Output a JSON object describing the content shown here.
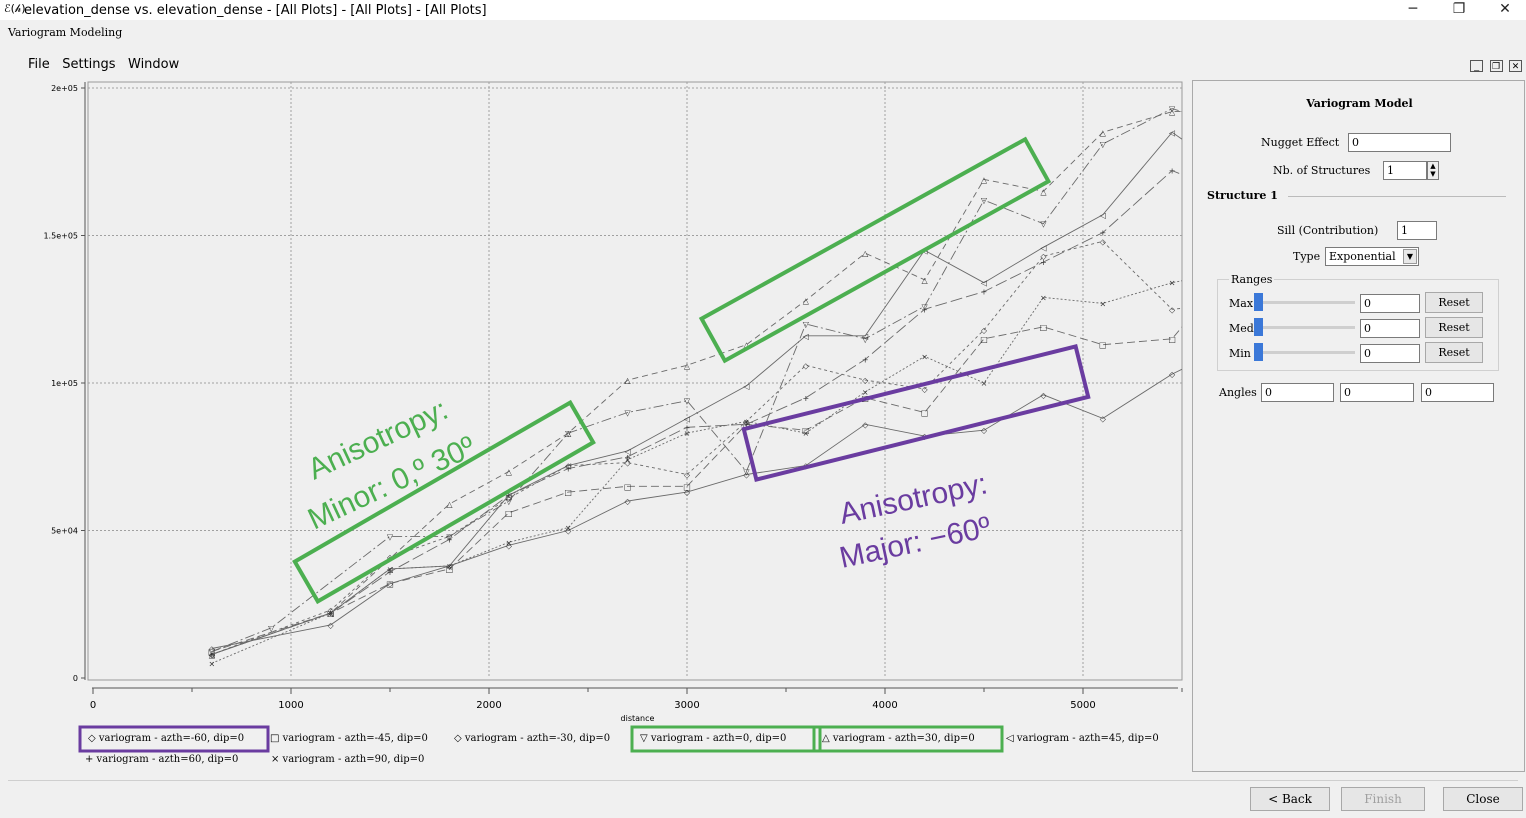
{
  "window": {
    "icon": "ℰ(𝒽)",
    "title": "elevation_dense vs. elevation_dense - [All Plots] - [All Plots] - [All Plots]",
    "minimize": "─",
    "maximize": "❐",
    "close": "✕"
  },
  "app": {
    "subtitle": "Variogram Modeling",
    "menu": [
      "File",
      "Settings",
      "Window"
    ],
    "panel_buttons": [
      "_",
      "❐",
      "✕"
    ]
  },
  "chart_data": {
    "type": "scatter",
    "xlabel": "distance",
    "ylabel": "",
    "xlim": [
      0,
      5500
    ],
    "ylim": [
      0,
      200000
    ],
    "x_ticks": [
      0,
      1000,
      2000,
      3000,
      4000,
      5000
    ],
    "x_tick_labels": [
      "0",
      "1000",
      "2000",
      "3000",
      "4000",
      "5000"
    ],
    "y_ticks": [
      0,
      50000,
      100000,
      150000,
      200000
    ],
    "y_tick_labels": [
      "0",
      "5e+04",
      "1e+05",
      "1.5e+05",
      "2e+05"
    ],
    "grid": true,
    "legend_position": "bottom",
    "series": [
      {
        "name": "variogram - azth=-60, dip=0",
        "marker": "◇",
        "dash": "",
        "points": [
          [
            600,
            10000
          ],
          [
            1200,
            18000
          ],
          [
            1500,
            32000
          ],
          [
            1800,
            38000
          ],
          [
            2100,
            45000
          ],
          [
            2400,
            50000
          ],
          [
            2700,
            60000
          ],
          [
            3000,
            63000
          ],
          [
            3300,
            69000
          ],
          [
            3600,
            72000
          ],
          [
            3900,
            86000
          ],
          [
            4200,
            82000
          ],
          [
            4500,
            84000
          ],
          [
            4800,
            96000
          ],
          [
            5100,
            88000
          ],
          [
            5450,
            103000
          ],
          [
            5600,
            108000
          ]
        ]
      },
      {
        "name": "variogram - azth=-45, dip=0",
        "marker": "□",
        "dash": "8,4",
        "points": [
          [
            600,
            9000
          ],
          [
            1200,
            22000
          ],
          [
            1500,
            32000
          ],
          [
            1800,
            37000
          ],
          [
            2100,
            56000
          ],
          [
            2400,
            63000
          ],
          [
            2700,
            65000
          ],
          [
            3000,
            65000
          ],
          [
            3300,
            86000
          ],
          [
            3600,
            84000
          ],
          [
            3900,
            95000
          ],
          [
            4200,
            90000
          ],
          [
            4500,
            115000
          ],
          [
            4800,
            119000
          ],
          [
            5100,
            113000
          ],
          [
            5450,
            115000
          ],
          [
            5600,
            127000
          ]
        ]
      },
      {
        "name": "variogram - azth=-30, dip=0",
        "marker": "◇",
        "dash": "3,3",
        "points": [
          [
            600,
            8000
          ],
          [
            1200,
            23000
          ],
          [
            1500,
            41000
          ],
          [
            1800,
            48000
          ],
          [
            2100,
            61000
          ],
          [
            2400,
            72000
          ],
          [
            2700,
            73000
          ],
          [
            3000,
            69000
          ],
          [
            3300,
            87000
          ],
          [
            3600,
            106000
          ],
          [
            3900,
            101000
          ],
          [
            4200,
            98000
          ],
          [
            4500,
            118000
          ],
          [
            4800,
            143000
          ],
          [
            5100,
            148000
          ],
          [
            5450,
            125000
          ],
          [
            5600,
            126000
          ]
        ]
      },
      {
        "name": "variogram - azth=0, dip=0",
        "marker": "▽",
        "dash": "10,3,2,3",
        "points": [
          [
            600,
            9000
          ],
          [
            900,
            17000
          ],
          [
            1500,
            48000
          ],
          [
            1800,
            48000
          ],
          [
            2100,
            60000
          ],
          [
            2400,
            83000
          ],
          [
            2700,
            90000
          ],
          [
            3000,
            94000
          ],
          [
            3300,
            70000
          ],
          [
            3600,
            120000
          ],
          [
            3900,
            115000
          ],
          [
            4200,
            126000
          ],
          [
            4500,
            162000
          ],
          [
            4800,
            154000
          ],
          [
            5100,
            181000
          ],
          [
            5450,
            193000
          ],
          [
            5600,
            190000
          ]
        ]
      },
      {
        "name": "variogram - azth=30, dip=0",
        "marker": "△",
        "dash": "6,4",
        "points": [
          [
            600,
            8000
          ],
          [
            1200,
            22000
          ],
          [
            1800,
            59000
          ],
          [
            2100,
            70000
          ],
          [
            2400,
            83000
          ],
          [
            2700,
            101000
          ],
          [
            3000,
            106000
          ],
          [
            3300,
            113000
          ],
          [
            3600,
            128000
          ],
          [
            3900,
            144000
          ],
          [
            4200,
            135000
          ],
          [
            4500,
            169000
          ],
          [
            4800,
            165000
          ],
          [
            5100,
            185000
          ],
          [
            5450,
            192000
          ],
          [
            5600,
            192000
          ]
        ]
      },
      {
        "name": "variogram - azth=45, dip=0",
        "marker": "◁",
        "dash": "",
        "points": [
          [
            600,
            8000
          ],
          [
            1200,
            22000
          ],
          [
            1500,
            37000
          ],
          [
            1800,
            38000
          ],
          [
            2100,
            62000
          ],
          [
            2400,
            72000
          ],
          [
            2700,
            77000
          ],
          [
            3000,
            88000
          ],
          [
            3300,
            99000
          ],
          [
            3600,
            116000
          ],
          [
            3900,
            116000
          ],
          [
            4200,
            145000
          ],
          [
            4500,
            134000
          ],
          [
            4800,
            146000
          ],
          [
            5100,
            157000
          ],
          [
            5450,
            185000
          ],
          [
            5600,
            178000
          ]
        ]
      },
      {
        "name": "variogram - azth=60, dip=0",
        "marker": "+",
        "dash": "12,4",
        "points": [
          [
            600,
            8000
          ],
          [
            1200,
            22000
          ],
          [
            1500,
            36000
          ],
          [
            1800,
            47000
          ],
          [
            2100,
            62000
          ],
          [
            2400,
            71000
          ],
          [
            2700,
            75000
          ],
          [
            3000,
            85000
          ],
          [
            3300,
            86000
          ],
          [
            3600,
            95000
          ],
          [
            3900,
            108000
          ],
          [
            4200,
            125000
          ],
          [
            4500,
            131000
          ],
          [
            4800,
            141000
          ],
          [
            5100,
            151000
          ],
          [
            5450,
            172000
          ],
          [
            5600,
            168000
          ]
        ]
      },
      {
        "name": "variogram - azth=90, dip=0",
        "marker": "×",
        "dash": "2,2",
        "points": [
          [
            600,
            5000
          ],
          [
            1200,
            22000
          ],
          [
            1500,
            37000
          ],
          [
            1800,
            38000
          ],
          [
            2100,
            46000
          ],
          [
            2400,
            51000
          ],
          [
            2700,
            74000
          ],
          [
            3000,
            83000
          ],
          [
            3300,
            87000
          ],
          [
            3600,
            83000
          ],
          [
            3900,
            97000
          ],
          [
            4200,
            109000
          ],
          [
            4500,
            100000
          ],
          [
            4800,
            129000
          ],
          [
            5100,
            127000
          ],
          [
            5450,
            134000
          ],
          [
            5600,
            136000
          ]
        ]
      }
    ],
    "annotations": [
      {
        "text_lines": [
          "Anisotropy:",
          "Minor: 0,º  30º"
        ],
        "color": "#4caf50"
      },
      {
        "text_lines": [
          "Anisotropy:",
          "Major: −60º"
        ],
        "color": "#6a3ca0"
      }
    ],
    "highlighted_legend_items": [
      {
        "index": 0,
        "color": "#6a3ca0"
      },
      {
        "index": 3,
        "color": "#4caf50"
      },
      {
        "index": 4,
        "color": "#4caf50"
      }
    ]
  },
  "model_panel": {
    "title": "Variogram Model",
    "nugget_label": "Nugget Effect",
    "nugget_value": "0",
    "nb_structures_label": "Nb. of Structures",
    "nb_structures_value": "1",
    "structure_label": "Structure 1",
    "sill_label": "Sill (Contribution)",
    "sill_value": "1",
    "type_label": "Type",
    "type_value": "Exponential",
    "ranges_label": "Ranges",
    "ranges": [
      {
        "label": "Max",
        "value": "0",
        "slider": 0,
        "reset": "Reset"
      },
      {
        "label": "Med",
        "value": "0",
        "slider": 0,
        "reset": "Reset"
      },
      {
        "label": "Min",
        "value": "0",
        "slider": 0,
        "reset": "Reset"
      }
    ],
    "angles_label": "Angles",
    "angles": [
      "0",
      "0",
      "0"
    ]
  },
  "footer": {
    "back": "< Back",
    "finish": "Finish",
    "close": "Close"
  }
}
